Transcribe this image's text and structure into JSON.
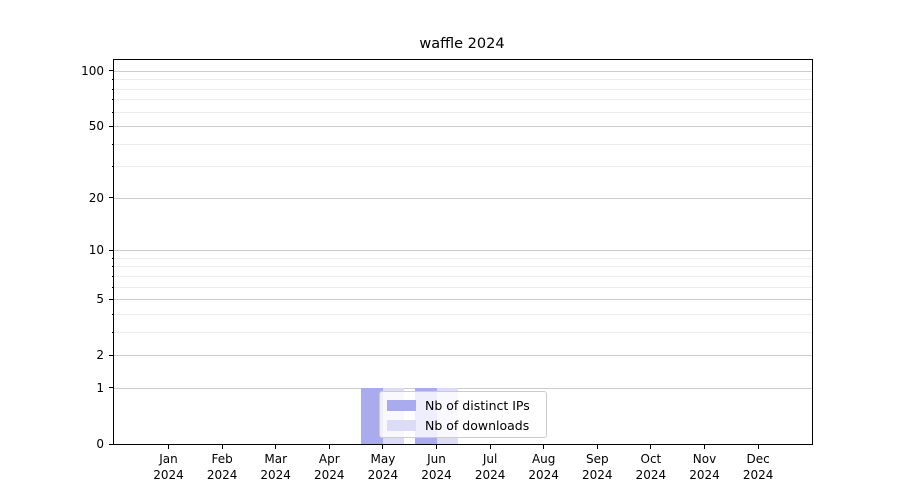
{
  "title": "waffle 2024",
  "legend": {
    "items": [
      {
        "label": "Nb of distinct IPs",
        "color": "#aaaaee"
      },
      {
        "label": "Nb of downloads",
        "color": "#dcdcf6"
      }
    ]
  },
  "colors": {
    "bar_distinct_ips": "#aaaaee",
    "bar_downloads": "#dcdcf6",
    "grid_major": "#cccccc",
    "grid_minor": "#ececec",
    "axis": "#000000",
    "legend_border": "#cccccc"
  },
  "chart_data": {
    "type": "bar",
    "title": "waffle 2024",
    "categories": [
      "Jan 2024",
      "Feb 2024",
      "Mar 2024",
      "Apr 2024",
      "May 2024",
      "Jun 2024",
      "Jul 2024",
      "Aug 2024",
      "Sep 2024",
      "Oct 2024",
      "Nov 2024",
      "Dec 2024"
    ],
    "series": [
      {
        "name": "Nb of distinct IPs",
        "color": "#aaaaee",
        "values": [
          0,
          0,
          0,
          0,
          1,
          1,
          0,
          0,
          0,
          0,
          0,
          0
        ]
      },
      {
        "name": "Nb of downloads",
        "color": "#dcdcf6",
        "values": [
          0,
          0,
          0,
          0,
          1,
          1,
          0,
          0,
          0,
          0,
          0,
          0
        ]
      }
    ],
    "xlabel": "",
    "ylabel": "",
    "yscale": "log1p",
    "ylim": [
      0,
      114
    ],
    "y_major_ticks": [
      0,
      1,
      2,
      5,
      10,
      20,
      50,
      100
    ],
    "y_minor_ticks": [
      3,
      4,
      6,
      7,
      8,
      9,
      30,
      40,
      60,
      70,
      80,
      90
    ],
    "grid": "both",
    "legend_position": "lower center, overlapping May–Jun bars"
  }
}
